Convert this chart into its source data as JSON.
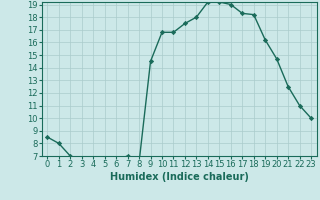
{
  "x": [
    0,
    1,
    2,
    3,
    4,
    5,
    6,
    7,
    8,
    9,
    10,
    11,
    12,
    13,
    14,
    15,
    16,
    17,
    18,
    19,
    20,
    21,
    22,
    23
  ],
  "y": [
    8.5,
    8.0,
    7.0,
    6.5,
    6.5,
    6.5,
    6.7,
    7.0,
    6.5,
    14.5,
    16.8,
    16.8,
    17.5,
    18.0,
    19.2,
    19.2,
    19.0,
    18.3,
    18.2,
    16.2,
    14.7,
    12.5,
    11.0,
    10.0
  ],
  "line_color": "#1a6b5a",
  "marker": "D",
  "markersize": 2.2,
  "bg_color": "#cce8e8",
  "grid_color": "#aacccc",
  "xlabel": "Humidex (Indice chaleur)",
  "ylim": [
    7,
    19
  ],
  "xlim": [
    -0.5,
    23.5
  ],
  "yticks": [
    7,
    8,
    9,
    10,
    11,
    12,
    13,
    14,
    15,
    16,
    17,
    18,
    19
  ],
  "xticks": [
    0,
    1,
    2,
    3,
    4,
    5,
    6,
    7,
    8,
    9,
    10,
    11,
    12,
    13,
    14,
    15,
    16,
    17,
    18,
    19,
    20,
    21,
    22,
    23
  ],
  "xlabel_fontsize": 7,
  "tick_fontsize": 6,
  "linewidth": 1.0
}
